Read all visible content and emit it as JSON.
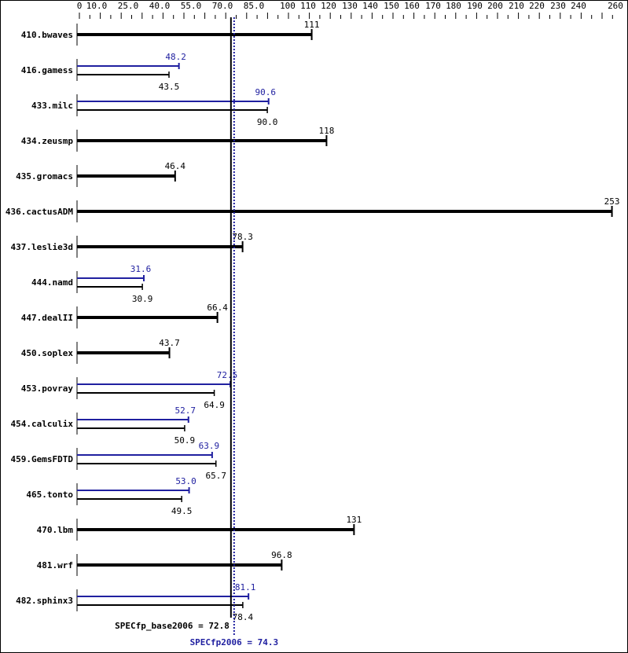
{
  "chart_data": {
    "type": "bar",
    "orientation": "horizontal",
    "xlim": [
      0,
      260
    ],
    "tick_labels": [
      "0",
      "10.0",
      "25.0",
      "40.0",
      "55.0",
      "70.0",
      "85.0",
      "100",
      "110",
      "120",
      "130",
      "140",
      "150",
      "160",
      "170",
      "180",
      "190",
      "200",
      "210",
      "220",
      "230",
      "240",
      "260"
    ],
    "tick_values": [
      0,
      10,
      25,
      40,
      55,
      70,
      85,
      100,
      110,
      120,
      130,
      140,
      150,
      160,
      170,
      180,
      190,
      200,
      210,
      220,
      230,
      240,
      260
    ],
    "categories": [
      "410.bwaves",
      "416.gamess",
      "433.milc",
      "434.zeusmp",
      "435.gromacs",
      "436.cactusADM",
      "437.leslie3d",
      "444.namd",
      "447.dealII",
      "450.soplex",
      "453.povray",
      "454.calculix",
      "459.GemsFDTD",
      "465.tonto",
      "470.lbm",
      "481.wrf",
      "482.sphinx3"
    ],
    "series": [
      {
        "name": "SPECfp_base2006",
        "color": "#000000",
        "values": [
          111,
          43.5,
          90.0,
          118,
          46.4,
          253,
          78.3,
          30.9,
          66.4,
          43.7,
          64.9,
          50.9,
          65.7,
          49.5,
          131,
          96.8,
          78.4
        ],
        "labels": [
          "111",
          "43.5",
          "90.0",
          "118",
          "46.4",
          "253",
          "78.3",
          "30.9",
          "66.4",
          "43.7",
          "64.9",
          "50.9",
          "65.7",
          "49.5",
          "131",
          "96.8",
          "78.4"
        ]
      },
      {
        "name": "SPECfp2006",
        "color": "#2020a0",
        "values": [
          null,
          48.2,
          90.6,
          null,
          null,
          null,
          null,
          31.6,
          null,
          null,
          72.5,
          52.7,
          63.9,
          53.0,
          null,
          null,
          81.1
        ],
        "labels": [
          null,
          "48.2",
          "90.6",
          null,
          null,
          null,
          null,
          "31.6",
          null,
          null,
          "72.5",
          "52.7",
          "63.9",
          "53.0",
          null,
          null,
          "81.1"
        ]
      }
    ],
    "reference_lines": [
      {
        "label": "SPECfp_base2006 = 72.8",
        "value": 72.8,
        "color": "#000000",
        "style": "solid"
      },
      {
        "label": "SPECfp2006 = 74.3",
        "value": 74.3,
        "color": "#2020a0",
        "style": "dotted"
      }
    ],
    "grid": false,
    "legend": "none"
  }
}
